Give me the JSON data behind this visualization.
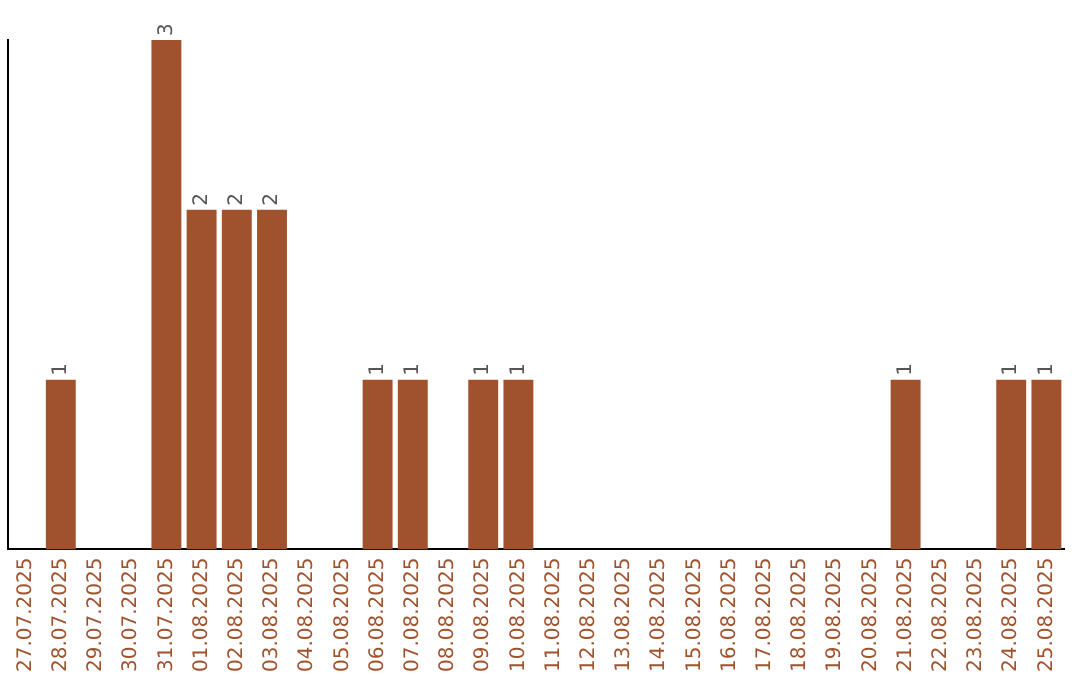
{
  "chart_data": {
    "type": "bar",
    "categories": [
      "27.07.2025",
      "28.07.2025",
      "29.07.2025",
      "30.07.2025",
      "31.07.2025",
      "01.08.2025",
      "02.08.2025",
      "03.08.2025",
      "04.08.2025",
      "05.08.2025",
      "06.08.2025",
      "07.08.2025",
      "08.08.2025",
      "09.08.2025",
      "10.08.2025",
      "11.08.2025",
      "12.08.2025",
      "13.08.2025",
      "14.08.2025",
      "15.08.2025",
      "16.08.2025",
      "17.08.2025",
      "18.08.2025",
      "19.08.2025",
      "20.08.2025",
      "21.08.2025",
      "22.08.2025",
      "23.08.2025",
      "24.08.2025",
      "25.08.2025"
    ],
    "values": [
      0,
      1,
      0,
      0,
      3,
      2,
      2,
      2,
      0,
      0,
      1,
      1,
      0,
      1,
      1,
      0,
      0,
      0,
      0,
      0,
      0,
      0,
      0,
      0,
      0,
      1,
      0,
      0,
      1,
      1
    ],
    "value_labels": [
      null,
      "1",
      null,
      null,
      "3",
      "2",
      "2",
      "2",
      null,
      null,
      "1",
      "1",
      null,
      "1",
      "1",
      null,
      null,
      null,
      null,
      null,
      null,
      null,
      null,
      null,
      null,
      "1",
      null,
      null,
      "1",
      "1"
    ],
    "color": "#a0522d",
    "grid": false,
    "legend": false,
    "tick_labels": "x"
  }
}
